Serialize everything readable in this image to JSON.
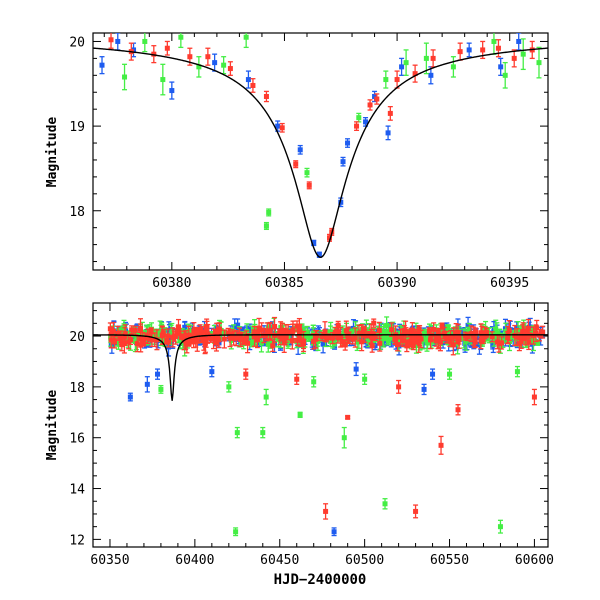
{
  "colors": {
    "green": "#44ee44",
    "red": "#ff3b2f",
    "blue": "#1e5cf0",
    "model": "#000000"
  },
  "chart_data": [
    {
      "type": "scatter",
      "title": "",
      "xlabel": "",
      "ylabel": "Magnitude",
      "xlim": [
        60376.5,
        60396.7
      ],
      "ylim": [
        20.1,
        17.3
      ],
      "xticks": [
        60380,
        60385,
        60390,
        60395
      ],
      "xtick_labels": [
        "60380",
        "60385",
        "60390",
        "60395"
      ],
      "yticks": [
        18,
        19,
        20
      ],
      "ytick_labels": [
        "18",
        "19",
        "20"
      ],
      "model": {
        "t0": 60386.6,
        "peak_mag": 17.45,
        "baseline_mag": 20.05,
        "width_days": 0.85
      },
      "series": [
        {
          "name": "green",
          "color_key": "green",
          "points": [
            {
              "x": 60377.9,
              "y": 19.58,
              "err": 0.15
            },
            {
              "x": 60378.8,
              "y": 20.0,
              "err": 0.12
            },
            {
              "x": 60379.6,
              "y": 19.55,
              "err": 0.18
            },
            {
              "x": 60380.4,
              "y": 20.05,
              "err": 0.12
            },
            {
              "x": 60381.2,
              "y": 19.7,
              "err": 0.12
            },
            {
              "x": 60382.3,
              "y": 19.72,
              "err": 0.1
            },
            {
              "x": 60383.3,
              "y": 20.05,
              "err": 0.12
            },
            {
              "x": 60384.2,
              "y": 17.82,
              "err": 0.04
            },
            {
              "x": 60384.3,
              "y": 17.98,
              "err": 0.04
            },
            {
              "x": 60386.0,
              "y": 18.45,
              "err": 0.05
            },
            {
              "x": 60388.3,
              "y": 19.1,
              "err": 0.05
            },
            {
              "x": 60389.5,
              "y": 19.55,
              "err": 0.1
            },
            {
              "x": 60390.4,
              "y": 19.75,
              "err": 0.15
            },
            {
              "x": 60391.3,
              "y": 19.8,
              "err": 0.18
            },
            {
              "x": 60392.5,
              "y": 19.7,
              "err": 0.12
            },
            {
              "x": 60394.3,
              "y": 20.0,
              "err": 0.15
            },
            {
              "x": 60394.8,
              "y": 19.6,
              "err": 0.15
            },
            {
              "x": 60395.6,
              "y": 19.85,
              "err": 0.18
            },
            {
              "x": 60396.3,
              "y": 19.75,
              "err": 0.18
            }
          ]
        },
        {
          "name": "blue",
          "color_key": "blue",
          "points": [
            {
              "x": 60376.9,
              "y": 19.72,
              "err": 0.1
            },
            {
              "x": 60377.6,
              "y": 20.0,
              "err": 0.1
            },
            {
              "x": 60378.3,
              "y": 19.9,
              "err": 0.08
            },
            {
              "x": 60380.0,
              "y": 19.42,
              "err": 0.1
            },
            {
              "x": 60381.9,
              "y": 19.75,
              "err": 0.1
            },
            {
              "x": 60383.4,
              "y": 19.55,
              "err": 0.1
            },
            {
              "x": 60384.7,
              "y": 19.0,
              "err": 0.06
            },
            {
              "x": 60385.7,
              "y": 18.72,
              "err": 0.05
            },
            {
              "x": 60386.3,
              "y": 17.62,
              "err": 0.03
            },
            {
              "x": 60386.55,
              "y": 17.48,
              "err": 0.03
            },
            {
              "x": 60387.5,
              "y": 18.1,
              "err": 0.05
            },
            {
              "x": 60387.6,
              "y": 18.58,
              "err": 0.05
            },
            {
              "x": 60387.8,
              "y": 18.8,
              "err": 0.05
            },
            {
              "x": 60388.6,
              "y": 19.05,
              "err": 0.05
            },
            {
              "x": 60389.0,
              "y": 19.35,
              "err": 0.06
            },
            {
              "x": 60389.6,
              "y": 18.92,
              "err": 0.08
            },
            {
              "x": 60390.2,
              "y": 19.7,
              "err": 0.1
            },
            {
              "x": 60391.5,
              "y": 19.6,
              "err": 0.1
            },
            {
              "x": 60393.2,
              "y": 19.9,
              "err": 0.08
            },
            {
              "x": 60394.6,
              "y": 19.7,
              "err": 0.1
            },
            {
              "x": 60395.4,
              "y": 20.0,
              "err": 0.1
            }
          ]
        },
        {
          "name": "red",
          "color_key": "red",
          "points": [
            {
              "x": 60377.3,
              "y": 20.02,
              "err": 0.1
            },
            {
              "x": 60378.2,
              "y": 19.88,
              "err": 0.1
            },
            {
              "x": 60379.2,
              "y": 19.85,
              "err": 0.1
            },
            {
              "x": 60379.8,
              "y": 19.92,
              "err": 0.08
            },
            {
              "x": 60380.8,
              "y": 19.82,
              "err": 0.1
            },
            {
              "x": 60381.6,
              "y": 19.82,
              "err": 0.1
            },
            {
              "x": 60382.6,
              "y": 19.68,
              "err": 0.08
            },
            {
              "x": 60383.6,
              "y": 19.48,
              "err": 0.08
            },
            {
              "x": 60384.2,
              "y": 19.35,
              "err": 0.06
            },
            {
              "x": 60384.9,
              "y": 18.98,
              "err": 0.05
            },
            {
              "x": 60385.5,
              "y": 18.55,
              "err": 0.04
            },
            {
              "x": 60386.1,
              "y": 18.3,
              "err": 0.04
            },
            {
              "x": 60387.0,
              "y": 17.68,
              "err": 0.04
            },
            {
              "x": 60387.1,
              "y": 17.75,
              "err": 0.04
            },
            {
              "x": 60388.2,
              "y": 19.0,
              "err": 0.05
            },
            {
              "x": 60388.8,
              "y": 19.25,
              "err": 0.06
            },
            {
              "x": 60389.1,
              "y": 19.32,
              "err": 0.06
            },
            {
              "x": 60389.7,
              "y": 19.15,
              "err": 0.08
            },
            {
              "x": 60390.0,
              "y": 19.55,
              "err": 0.1
            },
            {
              "x": 60390.8,
              "y": 19.62,
              "err": 0.1
            },
            {
              "x": 60391.6,
              "y": 19.8,
              "err": 0.1
            },
            {
              "x": 60392.8,
              "y": 19.88,
              "err": 0.1
            },
            {
              "x": 60393.8,
              "y": 19.9,
              "err": 0.1
            },
            {
              "x": 60394.5,
              "y": 19.92,
              "err": 0.1
            },
            {
              "x": 60395.2,
              "y": 19.8,
              "err": 0.1
            },
            {
              "x": 60396.0,
              "y": 19.9,
              "err": 0.1
            }
          ]
        }
      ]
    },
    {
      "type": "scatter",
      "title": "",
      "xlabel": "HJD−2400000",
      "ylabel": "Magnitude",
      "xlim": [
        60340,
        60608
      ],
      "ylim": [
        21.3,
        11.7
      ],
      "xticks": [
        60350,
        60400,
        60450,
        60500,
        60550,
        60600
      ],
      "xtick_labels": [
        "60350",
        "60400",
        "60450",
        "60500",
        "60550",
        "60600"
      ],
      "yticks": [
        12,
        14,
        16,
        18,
        20
      ],
      "ytick_labels": [
        "12",
        "14",
        "16",
        "18",
        "20"
      ],
      "model": {
        "t0": 60386.6,
        "peak_mag": 17.45,
        "baseline_mag": 20.05,
        "width_days": 0.85
      },
      "baseline": {
        "mag": 20.0,
        "scatter": 0.35,
        "x_start": 60350,
        "x_end": 60605,
        "points_per_series": 260
      },
      "series": [
        {
          "name": "green",
          "color_key": "green",
          "points": [
            {
              "x": 60424,
              "y": 12.3,
              "err": 0.15
            },
            {
              "x": 60425,
              "y": 16.2,
              "err": 0.2
            },
            {
              "x": 60440,
              "y": 16.2,
              "err": 0.2
            },
            {
              "x": 60442,
              "y": 17.6,
              "err": 0.3
            },
            {
              "x": 60462,
              "y": 16.9,
              "err": 0.1
            },
            {
              "x": 60488,
              "y": 16.0,
              "err": 0.4
            },
            {
              "x": 60512,
              "y": 13.4,
              "err": 0.2
            },
            {
              "x": 60580,
              "y": 12.5,
              "err": 0.25
            },
            {
              "x": 60380,
              "y": 17.9,
              "err": 0.15
            },
            {
              "x": 60420,
              "y": 18.0,
              "err": 0.2
            },
            {
              "x": 60470,
              "y": 18.2,
              "err": 0.2
            },
            {
              "x": 60500,
              "y": 18.3,
              "err": 0.2
            },
            {
              "x": 60550,
              "y": 18.5,
              "err": 0.2
            },
            {
              "x": 60590,
              "y": 18.6,
              "err": 0.2
            }
          ]
        },
        {
          "name": "red",
          "color_key": "red",
          "points": [
            {
              "x": 60477,
              "y": 13.1,
              "err": 0.3
            },
            {
              "x": 60530,
              "y": 13.1,
              "err": 0.25
            },
            {
              "x": 60545,
              "y": 15.7,
              "err": 0.35
            },
            {
              "x": 60555,
              "y": 17.1,
              "err": 0.2
            },
            {
              "x": 60490,
              "y": 16.8,
              "err": 0.05
            },
            {
              "x": 60600,
              "y": 17.6,
              "err": 0.3
            },
            {
              "x": 60520,
              "y": 18.0,
              "err": 0.25
            },
            {
              "x": 60460,
              "y": 18.3,
              "err": 0.2
            },
            {
              "x": 60430,
              "y": 18.5,
              "err": 0.2
            }
          ]
        },
        {
          "name": "blue",
          "color_key": "blue",
          "points": [
            {
              "x": 60482,
              "y": 12.3,
              "err": 0.15
            },
            {
              "x": 60362,
              "y": 17.6,
              "err": 0.15
            },
            {
              "x": 60372,
              "y": 18.1,
              "err": 0.3
            },
            {
              "x": 60378,
              "y": 18.5,
              "err": 0.2
            },
            {
              "x": 60535,
              "y": 17.9,
              "err": 0.2
            },
            {
              "x": 60540,
              "y": 18.5,
              "err": 0.2
            },
            {
              "x": 60410,
              "y": 18.6,
              "err": 0.2
            },
            {
              "x": 60495,
              "y": 18.7,
              "err": 0.25
            }
          ]
        }
      ]
    }
  ]
}
